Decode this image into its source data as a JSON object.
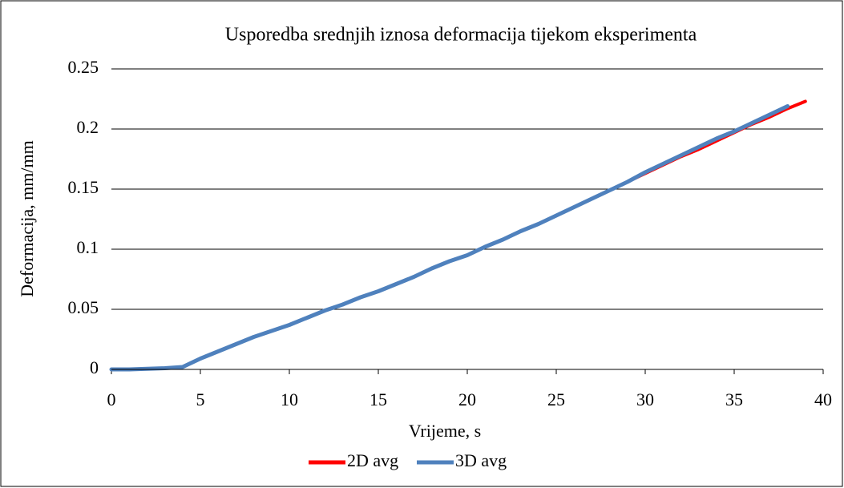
{
  "chart_data": {
    "type": "line",
    "title": "Usporedba srednjih iznosa deformacija tijekom eksperimenta",
    "x_label": "Vrijeme, s",
    "y_label": "Deformacija, mm/mm",
    "x": [
      0,
      1,
      2,
      3,
      4,
      5,
      6,
      7,
      8,
      9,
      10,
      11,
      12,
      13,
      14,
      15,
      16,
      17,
      18,
      19,
      20,
      21,
      22,
      23,
      24,
      25,
      26,
      27,
      28,
      29,
      30,
      31,
      32,
      33,
      34,
      35,
      36,
      37,
      38,
      39
    ],
    "series": [
      {
        "name": "2D avg",
        "color": "#ff0000",
        "values": [
          0,
          0,
          0.0005,
          0.001,
          0.002,
          0.009,
          0.015,
          0.021,
          0.027,
          0.032,
          0.037,
          0.043,
          0.049,
          0.054,
          0.06,
          0.065,
          0.071,
          0.077,
          0.084,
          0.09,
          0.095,
          0.102,
          0.108,
          0.115,
          0.121,
          0.128,
          0.135,
          0.142,
          0.149,
          0.156,
          0.163,
          0.17,
          0.177,
          0.183,
          0.19,
          0.197,
          0.204,
          0.21,
          0.217,
          0.223
        ]
      },
      {
        "name": "3D avg",
        "color": "#4f81bd",
        "values": [
          0,
          0,
          0.0005,
          0.001,
          0.002,
          0.009,
          0.015,
          0.021,
          0.027,
          0.032,
          0.037,
          0.043,
          0.049,
          0.054,
          0.06,
          0.065,
          0.071,
          0.077,
          0.084,
          0.09,
          0.095,
          0.102,
          0.108,
          0.115,
          0.121,
          0.128,
          0.135,
          0.142,
          0.149,
          0.156,
          0.164,
          0.171,
          0.178,
          0.185,
          0.192,
          0.198,
          0.205,
          0.212,
          0.219,
          null
        ]
      }
    ],
    "xlim": [
      0,
      40
    ],
    "xticks": [
      0,
      5,
      10,
      15,
      20,
      25,
      30,
      35,
      40
    ],
    "ylim": [
      0,
      0.25
    ],
    "yticks": [
      0,
      0.05,
      0.1,
      0.15,
      0.2,
      0.25
    ],
    "grid": true,
    "legend": "bottom"
  }
}
